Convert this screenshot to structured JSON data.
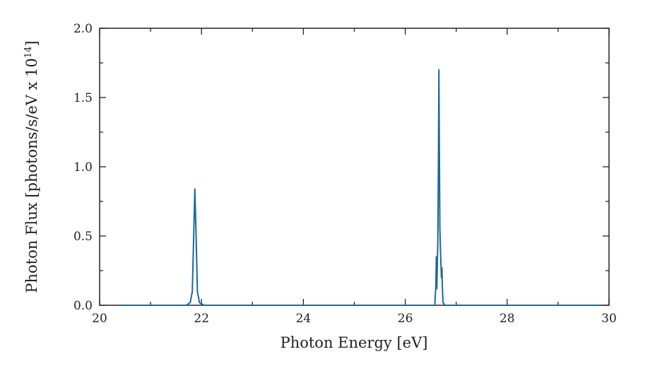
{
  "chart_data": {
    "type": "line",
    "title": "",
    "xlabel": "Photon Energy [eV]",
    "ylabel_main": "Photon Flux [photons/s/eV x 10",
    "ylabel_sup": "14",
    "ylabel_close": "]",
    "xlim": [
      20,
      30
    ],
    "ylim": [
      0,
      2.0
    ],
    "x_ticks": [
      "20",
      "22",
      "24",
      "26",
      "28",
      "30"
    ],
    "y_ticks": [
      "0.0",
      "0.5",
      "1.0",
      "1.5",
      "2.0"
    ],
    "x_tick_values": [
      20,
      22,
      24,
      26,
      28,
      30
    ],
    "y_tick_values": [
      0,
      0.5,
      1.0,
      1.5,
      2.0
    ],
    "grid": false,
    "series": [
      {
        "color": "#1b6a9a",
        "x": [
          20.4,
          21.7,
          21.78,
          21.82,
          21.85,
          21.87,
          21.89,
          21.92,
          21.96,
          22.05,
          26.55,
          26.58,
          26.6,
          26.61,
          26.62,
          26.63,
          26.64,
          26.65,
          26.66,
          26.67,
          26.68,
          26.69,
          26.7,
          26.71,
          26.72,
          26.73,
          26.74,
          26.78,
          29.8
        ],
        "y": [
          0.0,
          0.0,
          0.02,
          0.1,
          0.55,
          0.84,
          0.55,
          0.1,
          0.02,
          0.0,
          0.0,
          0.0,
          0.14,
          0.35,
          0.12,
          0.3,
          0.45,
          1.0,
          1.7,
          1.1,
          0.55,
          0.42,
          0.3,
          0.2,
          0.27,
          0.12,
          0.02,
          0.0,
          0.0
        ]
      }
    ]
  }
}
